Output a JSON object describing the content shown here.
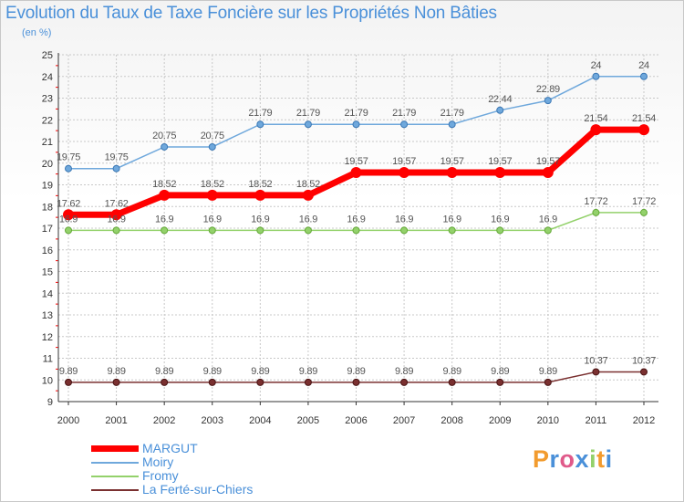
{
  "title": "Evolution du Taux de Taxe Foncière sur les Propriétés Non Bâties",
  "unit_label": "(en %)",
  "logo_text": "Proxiti",
  "colors": {
    "title": "#4a90d9",
    "axis": "#333333",
    "grid": "#c8c8c8",
    "ticks_red": "#ff0000"
  },
  "chart_data": {
    "type": "line",
    "title": "Evolution du Taux de Taxe Foncière sur les Propriétés Non Bâties",
    "xlabel": "",
    "ylabel": "(en %)",
    "ylim": [
      9,
      25
    ],
    "yticks": [
      9,
      10,
      11,
      12,
      13,
      14,
      15,
      16,
      17,
      18,
      19,
      20,
      21,
      22,
      23,
      24,
      25
    ],
    "x": [
      "2000",
      "2001",
      "2002",
      "2003",
      "2004",
      "2005",
      "2006",
      "2007",
      "2008",
      "2009",
      "2010",
      "2011",
      "2012"
    ],
    "grid": true,
    "legend_position": "bottom-left",
    "series": [
      {
        "name": "MARGUT",
        "color": "#ff0000",
        "values": [
          17.62,
          17.62,
          18.52,
          18.52,
          18.52,
          18.52,
          19.57,
          19.57,
          19.57,
          19.57,
          19.57,
          21.54,
          21.54
        ],
        "labels": [
          "17.62",
          "17.62",
          "18.52",
          "18.52",
          "18.52",
          "18.52",
          "19.57",
          "19.57",
          "19.57",
          "19.57",
          "19.57",
          "21.54",
          "21.54"
        ]
      },
      {
        "name": "Moiry",
        "color": "#6fa8dc",
        "values": [
          19.75,
          19.75,
          20.75,
          20.75,
          21.79,
          21.79,
          21.79,
          21.79,
          21.79,
          22.44,
          22.89,
          24,
          24
        ],
        "labels": [
          "19.75",
          "19.75",
          "20.75",
          "20.75",
          "21.79",
          "21.79",
          "21.79",
          "21.79",
          "21.79",
          "22.44",
          "22.89",
          "24",
          "24"
        ]
      },
      {
        "name": "Fromy",
        "color": "#93d16b",
        "values": [
          16.9,
          16.9,
          16.9,
          16.9,
          16.9,
          16.9,
          16.9,
          16.9,
          16.9,
          16.9,
          16.9,
          17.72,
          17.72
        ],
        "labels": [
          "16.9",
          "16.9",
          "16.9",
          "16.9",
          "16.9",
          "16.9",
          "16.9",
          "16.9",
          "16.9",
          "16.9",
          "16.9",
          "17.72",
          "17.72"
        ]
      },
      {
        "name": "La Ferté-sur-Chiers",
        "color": "#7a3030",
        "values": [
          9.89,
          9.89,
          9.89,
          9.89,
          9.89,
          9.89,
          9.89,
          9.89,
          9.89,
          9.89,
          9.89,
          10.37,
          10.37
        ],
        "labels": [
          "9.89",
          "9.89",
          "9.89",
          "9.89",
          "9.89",
          "9.89",
          "9.89",
          "9.89",
          "9.89",
          "9.89",
          "9.89",
          "10.37",
          "10.37"
        ]
      }
    ]
  }
}
